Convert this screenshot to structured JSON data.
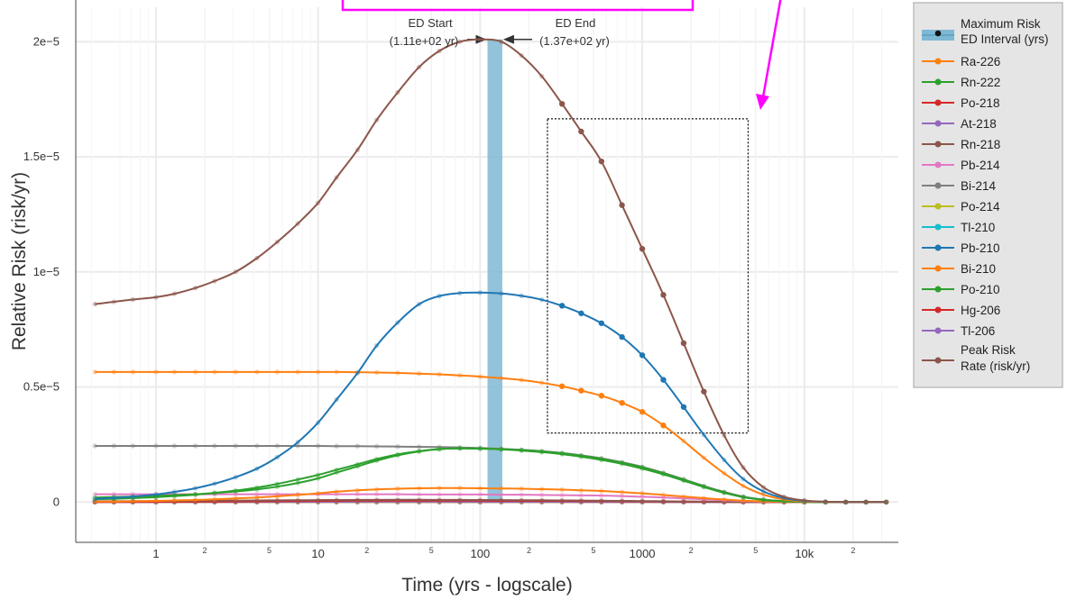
{
  "chart_data": {
    "type": "line",
    "xlabel": "Time (yrs - logscale)",
    "ylabel": "Relative Risk (risk/yr)",
    "x_scale": "log",
    "xlim": [
      0.32,
      38000
    ],
    "ylim": [
      -1.75e-06,
      2.15e-05
    ],
    "grid": true,
    "legend_position": "right",
    "y_ticks": [
      {
        "value": 0,
        "label": "0"
      },
      {
        "value": 5e-06,
        "label": "0.5e−5"
      },
      {
        "value": 1e-05,
        "label": "1e−5"
      },
      {
        "value": 1.5e-05,
        "label": "1.5e−5"
      },
      {
        "value": 2e-05,
        "label": "2e−5"
      }
    ],
    "x_major_ticks": [
      {
        "value": 1,
        "label": "1"
      },
      {
        "value": 10,
        "label": "10"
      },
      {
        "value": 100,
        "label": "100"
      },
      {
        "value": 1000,
        "label": "1000"
      },
      {
        "value": 10000,
        "label": "10k"
      }
    ],
    "x_minor_ticks": [
      {
        "value": 2,
        "label": "2"
      },
      {
        "value": 5,
        "label": "5"
      },
      {
        "value": 20,
        "label": "2"
      },
      {
        "value": 50,
        "label": "5"
      },
      {
        "value": 200,
        "label": "2"
      },
      {
        "value": 500,
        "label": "5"
      },
      {
        "value": 2000,
        "label": "2"
      },
      {
        "value": 5000,
        "label": "5"
      },
      {
        "value": 20000,
        "label": "2"
      }
    ],
    "ed_interval": {
      "start": 111,
      "end": 137,
      "color": "#7fb8d4"
    },
    "annotations": {
      "ed_start_label": "ED Start",
      "ed_start_value": "(1.11e+02 yr)",
      "ed_end_label": "ED End",
      "ed_end_value": "(1.37e+02 yr)"
    },
    "highlight_box": {
      "x_range": [
        260,
        4500
      ],
      "y_range": [
        3e-06,
        1.665e-05
      ],
      "style": "dotted"
    },
    "callout_color": "#ff00ff",
    "x_samples": [
      0.42,
      0.55,
      0.72,
      1,
      1.3,
      1.75,
      2.3,
      3.1,
      4.2,
      5.6,
      7.5,
      10,
      13,
      17.5,
      23,
      31,
      42,
      56,
      75,
      100,
      135,
      180,
      240,
      320,
      420,
      560,
      750,
      1000,
      1350,
      1800,
      2400,
      3200,
      4200,
      5600,
      7500,
      10000,
      13500,
      18000,
      24000,
      32000
    ],
    "series": [
      {
        "name": "Ra-226",
        "color": "#ff7f0e",
        "values": [
          5.65e-06,
          5.65e-06,
          5.65e-06,
          5.65e-06,
          5.65e-06,
          5.65e-06,
          5.65e-06,
          5.65e-06,
          5.65e-06,
          5.65e-06,
          5.65e-06,
          5.65e-06,
          5.65e-06,
          5.64e-06,
          5.63e-06,
          5.61e-06,
          5.58e-06,
          5.55e-06,
          5.5e-06,
          5.45e-06,
          5.38e-06,
          5.3e-06,
          5.18e-06,
          5.03e-06,
          4.84e-06,
          4.62e-06,
          4.31e-06,
          3.92e-06,
          3.33e-06,
          2.65e-06,
          1.92e-06,
          1.25e-06,
          7e-07,
          3.2e-07,
          1.1e-07,
          3e-08,
          5e-09,
          0,
          0,
          0
        ]
      },
      {
        "name": "Rn-222",
        "color": "#2ca02c",
        "values": [
          2e-07,
          2.2e-07,
          2.4e-07,
          2.7e-07,
          3e-07,
          3.4e-07,
          3.9e-07,
          4.6e-07,
          5.5e-07,
          6.7e-07,
          8.3e-07,
          1.03e-06,
          1.28e-06,
          1.55e-06,
          1.8e-06,
          2.03e-06,
          2.2e-06,
          2.3e-06,
          2.33e-06,
          2.32e-06,
          2.3e-06,
          2.26e-06,
          2.2e-06,
          2.12e-06,
          2.01e-06,
          1.88e-06,
          1.71e-06,
          1.51e-06,
          1.25e-06,
          9.7e-07,
          6.8e-07,
          4.2e-07,
          2.2e-07,
          1e-07,
          4e-08,
          1e-08,
          0,
          0,
          0,
          0
        ]
      },
      {
        "name": "Po-218",
        "color": "#d62728",
        "values": [
          5e-09,
          6e-09,
          8e-09,
          1e-08,
          1.2e-08,
          1.5e-08,
          2e-08,
          2.5e-08,
          3e-08,
          3.8e-08,
          4.5e-08,
          5e-08,
          5.5e-08,
          6e-08,
          6.2e-08,
          6.3e-08,
          6.3e-08,
          6.2e-08,
          6e-08,
          5.8e-08,
          5.5e-08,
          5.2e-08,
          5e-08,
          4.7e-08,
          4.4e-08,
          4e-08,
          3.6e-08,
          3e-08,
          2.4e-08,
          1.8e-08,
          1.2e-08,
          8e-09,
          4e-09,
          2e-09,
          0,
          0,
          0,
          0,
          0,
          0
        ]
      },
      {
        "name": "At-218",
        "color": "#9467bd",
        "values": [
          2e-09,
          3e-09,
          4e-09,
          5e-09,
          6e-09,
          7e-09,
          8e-09,
          9e-09,
          1e-08,
          1.1e-08,
          1.2e-08,
          1.3e-08,
          1.3e-08,
          1.4e-08,
          1.4e-08,
          1.4e-08,
          1.4e-08,
          1.4e-08,
          1.3e-08,
          1.3e-08,
          1.2e-08,
          1.2e-08,
          1.1e-08,
          1e-08,
          9e-09,
          8e-09,
          7e-09,
          6e-09,
          5e-09,
          4e-09,
          3e-09,
          2e-09,
          1e-09,
          0,
          0,
          0,
          0,
          0,
          0,
          0
        ]
      },
      {
        "name": "Rn-218",
        "color": "#8c564b",
        "values": [
          3e-08,
          3.5e-08,
          4e-08,
          4.5e-08,
          5e-08,
          5.5e-08,
          6e-08,
          6.5e-08,
          7e-08,
          7.5e-08,
          8e-08,
          8.5e-08,
          9e-08,
          9.3e-08,
          9.5e-08,
          9.6e-08,
          9.6e-08,
          9.5e-08,
          9.3e-08,
          9e-08,
          8.6e-08,
          8.2e-08,
          7.7e-08,
          7.2e-08,
          6.6e-08,
          6e-08,
          5.2e-08,
          4.4e-08,
          3.5e-08,
          2.6e-08,
          1.8e-08,
          1.1e-08,
          6e-09,
          3e-09,
          1e-09,
          0,
          0,
          0,
          0,
          0
        ]
      },
      {
        "name": "Pb-214",
        "color": "#e377c2",
        "values": [
          3.4e-07,
          3.4e-07,
          3.4e-07,
          3.4e-07,
          3.4e-07,
          3.4e-07,
          3.4e-07,
          3.4e-07,
          3.4e-07,
          3.4e-07,
          3.4e-07,
          3.4e-07,
          3.4e-07,
          3.4e-07,
          3.4e-07,
          3.4e-07,
          3.3e-07,
          3.3e-07,
          3.3e-07,
          3.3e-07,
          3.2e-07,
          3.2e-07,
          3.1e-07,
          3e-07,
          2.9e-07,
          2.8e-07,
          2.6e-07,
          2.3e-07,
          2e-07,
          1.6e-07,
          1.2e-07,
          8e-08,
          4.5e-08,
          2e-08,
          7e-09,
          2e-09,
          0,
          0,
          0,
          0
        ]
      },
      {
        "name": "Bi-214",
        "color": "#7f7f7f",
        "values": [
          2.44e-06,
          2.44e-06,
          2.44e-06,
          2.44e-06,
          2.44e-06,
          2.44e-06,
          2.44e-06,
          2.44e-06,
          2.44e-06,
          2.44e-06,
          2.44e-06,
          2.44e-06,
          2.43e-06,
          2.43e-06,
          2.42e-06,
          2.41e-06,
          2.4e-06,
          2.39e-06,
          2.37e-06,
          2.35e-06,
          2.31e-06,
          2.27e-06,
          2.21e-06,
          2.13e-06,
          2.03e-06,
          1.9e-06,
          1.73e-06,
          1.53e-06,
          1.27e-06,
          9.9e-07,
          7e-07,
          4.4e-07,
          2.4e-07,
          1.1e-07,
          4e-08,
          1e-08,
          0,
          0,
          0,
          0
        ]
      },
      {
        "name": "Po-214",
        "color": "#bcbd22",
        "values": [
          1e-09,
          1e-09,
          1e-09,
          1e-09,
          1e-09,
          1e-09,
          1e-09,
          1e-09,
          1e-09,
          1e-09,
          1e-09,
          1e-09,
          1e-09,
          1e-09,
          1e-09,
          1e-09,
          1e-09,
          1e-09,
          1e-09,
          1e-09,
          1e-09,
          1e-09,
          1e-09,
          1e-09,
          1e-09,
          1e-09,
          1e-09,
          1e-09,
          1e-09,
          0,
          0,
          0,
          0,
          0,
          0,
          0,
          0,
          0,
          0,
          0
        ]
      },
      {
        "name": "Tl-210",
        "color": "#17becf",
        "values": [
          0,
          0,
          0,
          0,
          0,
          0,
          0,
          0,
          0,
          0,
          0,
          0,
          0,
          0,
          0,
          0,
          0,
          0,
          0,
          0,
          0,
          0,
          0,
          0,
          0,
          0,
          0,
          0,
          0,
          0,
          0,
          0,
          0,
          0,
          0,
          0,
          0,
          0,
          0,
          0
        ]
      },
      {
        "name": "Pb-210",
        "color": "#1f77b4",
        "values": [
          1.4e-07,
          1.8e-07,
          2.4e-07,
          3.3e-07,
          4.4e-07,
          6e-07,
          8e-07,
          1.08e-06,
          1.45e-06,
          1.95e-06,
          2.6e-06,
          3.45e-06,
          4.45e-06,
          5.6e-06,
          6.8e-06,
          7.8e-06,
          8.6e-06,
          8.95e-06,
          9.08e-06,
          9.1e-06,
          9.06e-06,
          8.96e-06,
          8.79e-06,
          8.53e-06,
          8.2e-06,
          7.77e-06,
          7.17e-06,
          6.38e-06,
          5.31e-06,
          4.13e-06,
          2.92e-06,
          1.83e-06,
          1e-06,
          4.6e-07,
          1.7e-07,
          5e-08,
          1e-08,
          0,
          0,
          0
        ]
      },
      {
        "name": "Bi-210",
        "color": "#ff7f0e",
        "values": [
          2e-08,
          2.5e-08,
          3.5e-08,
          5e-08,
          7e-08,
          9e-08,
          1.2e-07,
          1.6e-07,
          2e-07,
          2.5e-07,
          3.1e-07,
          3.8e-07,
          4.5e-07,
          5.1e-07,
          5.5e-07,
          5.8e-07,
          6e-07,
          6.1e-07,
          6.1e-07,
          6e-07,
          5.9e-07,
          5.8e-07,
          5.6e-07,
          5.4e-07,
          5.1e-07,
          4.8e-07,
          4.3e-07,
          3.8e-07,
          3.1e-07,
          2.4e-07,
          1.7e-07,
          1.1e-07,
          6e-08,
          3e-08,
          1e-08,
          0,
          0,
          0,
          0,
          0
        ]
      },
      {
        "name": "Po-210",
        "color": "#2ca02c",
        "values": [
          1.2e-07,
          1.4e-07,
          1.7e-07,
          2.1e-07,
          2.6e-07,
          3.2e-07,
          4e-07,
          5e-07,
          6.3e-07,
          7.9e-07,
          9.8e-07,
          1.18e-06,
          1.4e-06,
          1.64e-06,
          1.87e-06,
          2.07e-06,
          2.21e-06,
          2.3e-06,
          2.33e-06,
          2.32e-06,
          2.29e-06,
          2.24e-06,
          2.17e-06,
          2.08e-06,
          1.97e-06,
          1.83e-06,
          1.66e-06,
          1.45e-06,
          1.2e-06,
          9.3e-07,
          6.5e-07,
          4e-07,
          2.1e-07,
          9e-08,
          3e-08,
          1e-08,
          0,
          0,
          0,
          0
        ]
      },
      {
        "name": "Hg-206",
        "color": "#d62728",
        "values": [
          0,
          0,
          0,
          0,
          0,
          0,
          0,
          0,
          0,
          0,
          0,
          0,
          0,
          0,
          0,
          0,
          0,
          0,
          0,
          0,
          0,
          0,
          0,
          0,
          0,
          0,
          0,
          0,
          0,
          0,
          0,
          0,
          0,
          0,
          0,
          0,
          0,
          0,
          0,
          0
        ]
      },
      {
        "name": "Tl-206",
        "color": "#9467bd",
        "values": [
          0,
          0,
          0,
          0,
          0,
          0,
          0,
          0,
          0,
          0,
          0,
          0,
          0,
          0,
          0,
          0,
          0,
          0,
          0,
          0,
          0,
          0,
          0,
          0,
          0,
          0,
          0,
          0,
          0,
          0,
          0,
          0,
          0,
          0,
          0,
          0,
          0,
          0,
          0,
          0
        ]
      },
      {
        "name": "Peak Risk Rate (risk/yr)",
        "color": "#8c564b",
        "values": [
          8.6e-06,
          8.7e-06,
          8.8e-06,
          8.9e-06,
          9.05e-06,
          9.3e-06,
          9.6e-06,
          1e-05,
          1.06e-05,
          1.13e-05,
          1.21e-05,
          1.3e-05,
          1.41e-05,
          1.53e-05,
          1.66e-05,
          1.78e-05,
          1.89e-05,
          1.96e-05,
          2e-05,
          2.01e-05,
          2e-05,
          1.94e-05,
          1.85e-05,
          1.73e-05,
          1.61e-05,
          1.48e-05,
          1.29e-05,
          1.1e-05,
          9e-06,
          6.9e-06,
          4.8e-06,
          2.9e-06,
          1.5e-06,
          6.4e-07,
          2.3e-07,
          7e-08,
          1.5e-08,
          0,
          0,
          0
        ]
      }
    ],
    "legend": {
      "header_label": "Maximum Risk\nED Interval (yrs)",
      "items": [
        {
          "label": "Ra-226",
          "color": "#ff7f0e"
        },
        {
          "label": "Rn-222",
          "color": "#2ca02c"
        },
        {
          "label": "Po-218",
          "color": "#d62728"
        },
        {
          "label": "At-218",
          "color": "#9467bd"
        },
        {
          "label": "Rn-218",
          "color": "#8c564b"
        },
        {
          "label": "Pb-214",
          "color": "#e377c2"
        },
        {
          "label": "Bi-214",
          "color": "#7f7f7f"
        },
        {
          "label": "Po-214",
          "color": "#bcbd22"
        },
        {
          "label": "Tl-210",
          "color": "#17becf"
        },
        {
          "label": "Pb-210",
          "color": "#1f77b4"
        },
        {
          "label": "Bi-210",
          "color": "#ff7f0e"
        },
        {
          "label": "Po-210",
          "color": "#2ca02c"
        },
        {
          "label": "Hg-206",
          "color": "#d62728"
        },
        {
          "label": "Tl-206",
          "color": "#9467bd"
        },
        {
          "label": "Peak Risk\nRate (risk/yr)",
          "color": "#8c564b"
        }
      ]
    }
  }
}
